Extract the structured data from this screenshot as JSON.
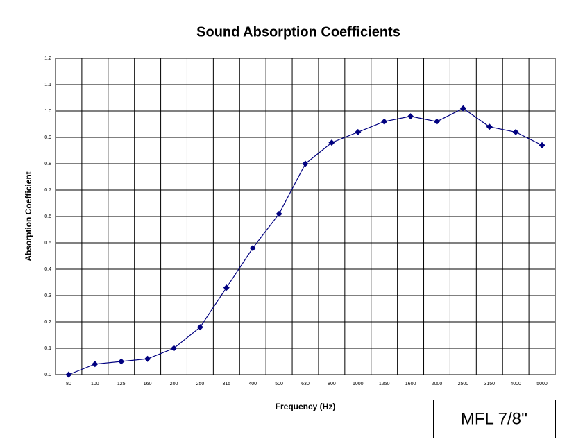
{
  "chart_data": {
    "type": "line",
    "title": "Sound Absorption Coefficients",
    "x_label": "Frequency (Hz)",
    "y_label": "Absorption Coefficient",
    "annotation": "MFL 7/8''",
    "categories": [
      "80",
      "100",
      "125",
      "160",
      "200",
      "250",
      "315",
      "400",
      "500",
      "630",
      "800",
      "1000",
      "1250",
      "1600",
      "2000",
      "2500",
      "3150",
      "4000",
      "5000"
    ],
    "series": [
      {
        "name": "Absorption Coefficient",
        "color": "#000080",
        "values": [
          0.0,
          0.04,
          0.05,
          0.06,
          0.1,
          0.18,
          0.33,
          0.48,
          0.61,
          0.8,
          0.88,
          0.92,
          0.96,
          0.98,
          0.96,
          1.01,
          0.94,
          0.92,
          0.87
        ]
      }
    ],
    "ylim": [
      0,
      1.2
    ],
    "yticks": [
      {
        "value": 0,
        "label": "0.0"
      },
      0.1,
      0.2,
      0.3,
      0.4,
      0.5,
      0.6,
      0.7,
      0.8,
      0.9,
      {
        "value": 1,
        "label": "1.0"
      },
      1.1,
      1.2
    ],
    "grid": true
  }
}
